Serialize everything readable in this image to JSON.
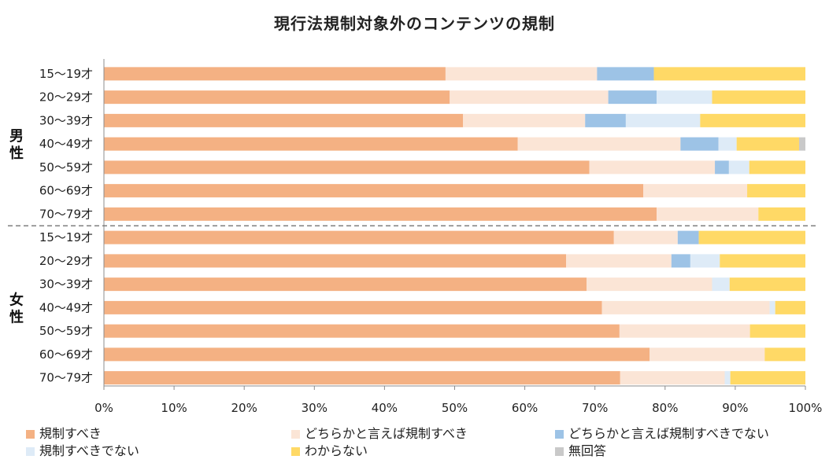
{
  "chart_data": {
    "type": "bar",
    "orientation": "horizontal",
    "stacked": "percent",
    "title": "現行法規制対象外のコンテンツの規制",
    "xlim": [
      0,
      100
    ],
    "x_ticks": [
      "0%",
      "10%",
      "20%",
      "30%",
      "40%",
      "50%",
      "60%",
      "70%",
      "80%",
      "90%",
      "100%"
    ],
    "groups": [
      {
        "name": "男性",
        "categories": [
          "15〜19才",
          "20〜29才",
          "30〜39才",
          "40〜49才",
          "50〜59才",
          "60〜69才",
          "70〜79才"
        ]
      },
      {
        "name": "女性",
        "categories": [
          "15〜19才",
          "20〜29才",
          "30〜39才",
          "40〜49才",
          "50〜59才",
          "60〜69才",
          "70〜79才"
        ]
      }
    ],
    "legend_position": "bottom",
    "grid": false,
    "series": [
      {
        "name": "規制すべき",
        "color": "#F4B183",
        "values": [
          48.7,
          49.3,
          51.2,
          59.0,
          69.2,
          76.9,
          78.8,
          72.7,
          65.9,
          68.8,
          71.0,
          73.5,
          77.8,
          73.6
        ]
      },
      {
        "name": "どちらかと言えば規制すべき",
        "color": "#FBE5D6",
        "values": [
          21.6,
          22.6,
          17.4,
          23.2,
          17.9,
          14.8,
          14.5,
          9.1,
          15.0,
          17.9,
          23.9,
          18.6,
          16.4,
          14.9
        ]
      },
      {
        "name": "どちらかと言えば規制すべきでない",
        "color": "#9DC3E6",
        "values": [
          8.1,
          6.9,
          5.8,
          5.4,
          2.0,
          0,
          0,
          3.0,
          2.7,
          0,
          0,
          0,
          0,
          0
        ]
      },
      {
        "name": "規制すべきでない",
        "color": "#DEEBF7",
        "values": [
          0,
          7.9,
          10.6,
          2.6,
          2.9,
          0,
          0,
          0,
          4.2,
          2.5,
          0.8,
          0,
          0,
          0.8
        ]
      },
      {
        "name": "わからない",
        "color": "#FFD966",
        "values": [
          21.6,
          13.3,
          15.0,
          8.9,
          8.0,
          8.3,
          6.7,
          15.2,
          12.2,
          10.8,
          4.3,
          7.9,
          5.8,
          10.7
        ]
      },
      {
        "name": "無回答",
        "color": "#C9C9C9",
        "values": [
          0,
          0,
          0,
          0.9,
          0,
          0,
          0,
          0,
          0,
          0,
          0,
          0,
          0,
          0
        ]
      }
    ]
  }
}
